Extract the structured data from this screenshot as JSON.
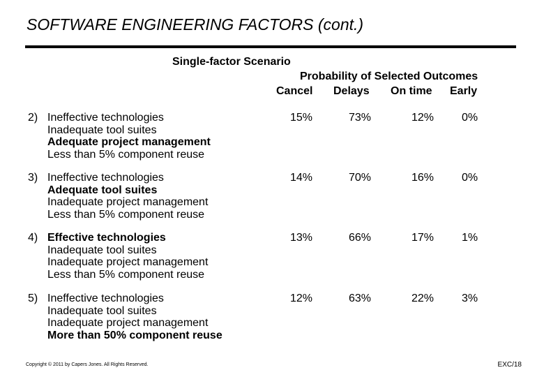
{
  "title": "SOFTWARE ENGINEERING FACTORS (cont.)",
  "scenario_label": "Single-factor Scenario",
  "probability_label": "Probability of Selected Outcomes",
  "columns": [
    "Cancel",
    "Delays",
    "On time",
    "Early"
  ],
  "scenarios": [
    {
      "number": "2)",
      "lines": [
        {
          "text": "Ineffective technologies",
          "bold": false
        },
        {
          "text": "Inadequate tool suites",
          "bold": false
        },
        {
          "text": "Adequate project management",
          "bold": true
        },
        {
          "text": "Less than 5% component reuse",
          "bold": false
        }
      ],
      "values": [
        "15%",
        "73%",
        "12%",
        "0%"
      ]
    },
    {
      "number": "3)",
      "lines": [
        {
          "text": "Ineffective technologies",
          "bold": false
        },
        {
          "text": "Adequate tool suites",
          "bold": true
        },
        {
          "text": "Inadequate project management",
          "bold": false
        },
        {
          "text": "Less than 5% component reuse",
          "bold": false
        }
      ],
      "values": [
        "14%",
        "70%",
        "16%",
        "0%"
      ]
    },
    {
      "number": "4)",
      "lines": [
        {
          "text": "Effective technologies",
          "bold": true
        },
        {
          "text": "Inadequate tool suites",
          "bold": false
        },
        {
          "text": "Inadequate project management",
          "bold": false
        },
        {
          "text": "Less than 5% component reuse",
          "bold": false
        }
      ],
      "values": [
        "13%",
        "66%",
        "17%",
        "1%"
      ]
    },
    {
      "number": "5)",
      "lines": [
        {
          "text": "Ineffective technologies",
          "bold": false
        },
        {
          "text": "Inadequate tool suites",
          "bold": false
        },
        {
          "text": "Inadequate project management",
          "bold": false
        },
        {
          "text": "More than 50% component reuse",
          "bold": true
        }
      ],
      "values": [
        "12%",
        "63%",
        "22%",
        "3%"
      ]
    }
  ],
  "footer": {
    "copyright": "Copyright © 2011 by Capers Jones. All Rights Reserved.",
    "slide_id": "EXC/18"
  }
}
